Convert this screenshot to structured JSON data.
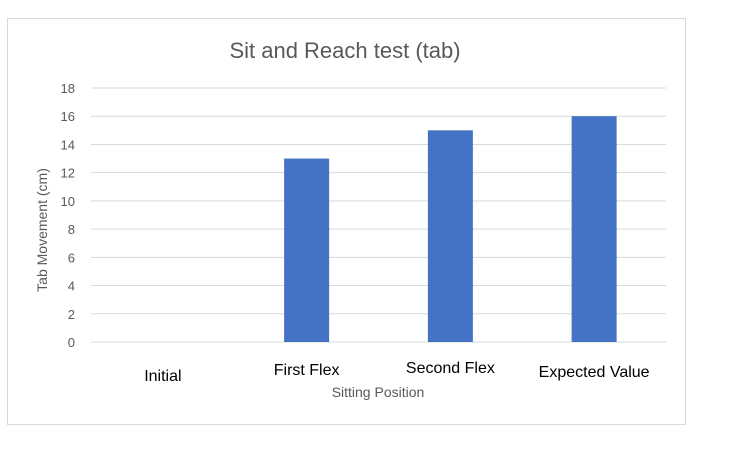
{
  "chart_data": {
    "type": "bar",
    "title": "Sit and Reach test (tab)",
    "xlabel": "Sitting Position",
    "ylabel": "Tab Movement (cm)",
    "categories": [
      "Initial",
      "First Flex",
      "Second Flex",
      "Expected Value"
    ],
    "values": [
      0,
      13,
      15,
      16
    ],
    "ylim": [
      0,
      18
    ],
    "yticks": [
      0,
      2,
      4,
      6,
      8,
      10,
      12,
      14,
      16,
      18
    ],
    "grid": true,
    "legend": "none",
    "bar_color": "#4472C4",
    "gridline_color": "#d9d9d9"
  }
}
